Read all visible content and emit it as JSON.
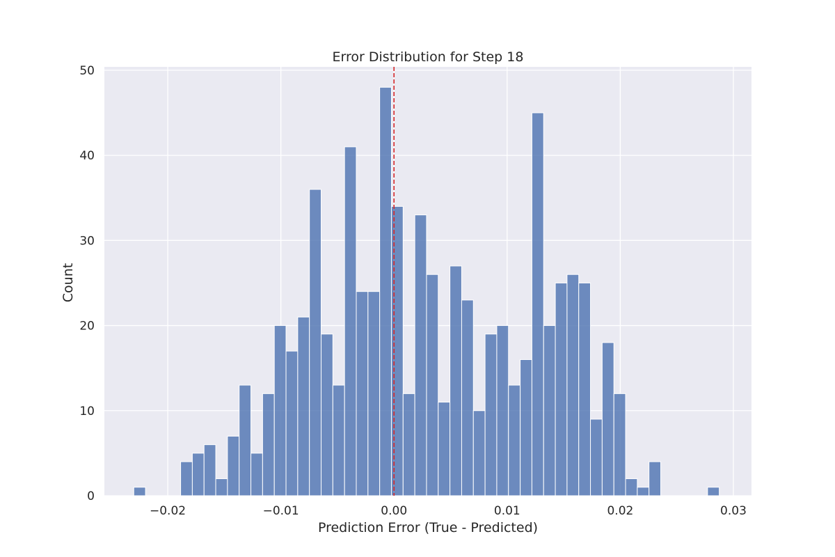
{
  "chart_data": {
    "type": "histogram",
    "title": "Error Distribution for Step 18",
    "xlabel": "Prediction Error (True - Predicted)",
    "ylabel": "Count",
    "xlim": [
      -0.0256,
      0.0316
    ],
    "ylim": [
      0,
      50.4
    ],
    "xticks": [
      {
        "value": -0.02,
        "label": "−0.02"
      },
      {
        "value": -0.01,
        "label": "−0.01"
      },
      {
        "value": 0.0,
        "label": "0.00"
      },
      {
        "value": 0.01,
        "label": "0.01"
      },
      {
        "value": 0.02,
        "label": "0.02"
      },
      {
        "value": 0.03,
        "label": "0.03"
      }
    ],
    "yticks": [
      {
        "value": 0,
        "label": "0"
      },
      {
        "value": 10,
        "label": "10"
      },
      {
        "value": 20,
        "label": "20"
      },
      {
        "value": 30,
        "label": "30"
      },
      {
        "value": 40,
        "label": "40"
      },
      {
        "value": 50,
        "label": "50"
      }
    ],
    "bins": {
      "start": -0.023,
      "width": 0.001035,
      "counts": [
        1,
        0,
        0,
        0,
        4,
        5,
        6,
        2,
        7,
        13,
        5,
        12,
        20,
        17,
        21,
        36,
        19,
        13,
        41,
        24,
        24,
        48,
        34,
        12,
        33,
        26,
        11,
        27,
        23,
        10,
        19,
        20,
        13,
        16,
        45,
        20,
        25,
        26,
        25,
        9,
        18,
        12,
        2,
        1,
        4,
        0,
        0,
        0,
        0,
        1
      ]
    },
    "reference_line": {
      "x": 0.0,
      "style": "dashed",
      "color": "#d62728"
    },
    "bar_color": "#4c72b0",
    "background_color": "#eaeaf2",
    "grid": true
  }
}
